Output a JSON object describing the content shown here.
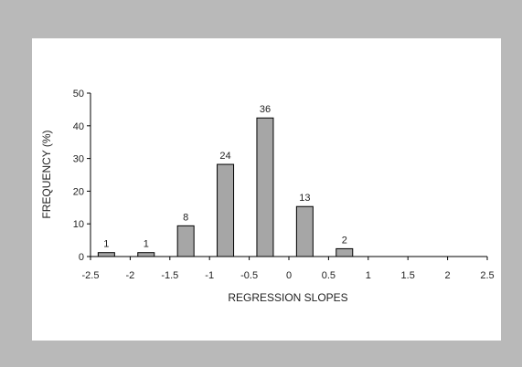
{
  "chart_data": {
    "type": "bar",
    "x_label": "REGRESSION SLOPES",
    "y_label": "FREQUENCY (%)",
    "x": [
      -2.3,
      -1.8,
      -1.3,
      -0.8,
      -0.3,
      0.2,
      0.7
    ],
    "values": [
      1.2,
      1.2,
      9.4,
      28.2,
      42.4,
      15.3,
      2.4
    ],
    "counts": [
      1,
      1,
      8,
      24,
      36,
      13,
      2
    ],
    "color": "#a6a6a6",
    "xlim": [
      -2.5,
      2.5
    ],
    "xticks": [
      -2.5,
      -2,
      -1.5,
      -1,
      -0.5,
      0,
      0.5,
      1,
      1.5,
      2,
      2.5
    ],
    "ylim": [
      0,
      50
    ],
    "yticks": [
      0,
      10,
      20,
      30,
      40,
      50
    ],
    "grid": false
  }
}
